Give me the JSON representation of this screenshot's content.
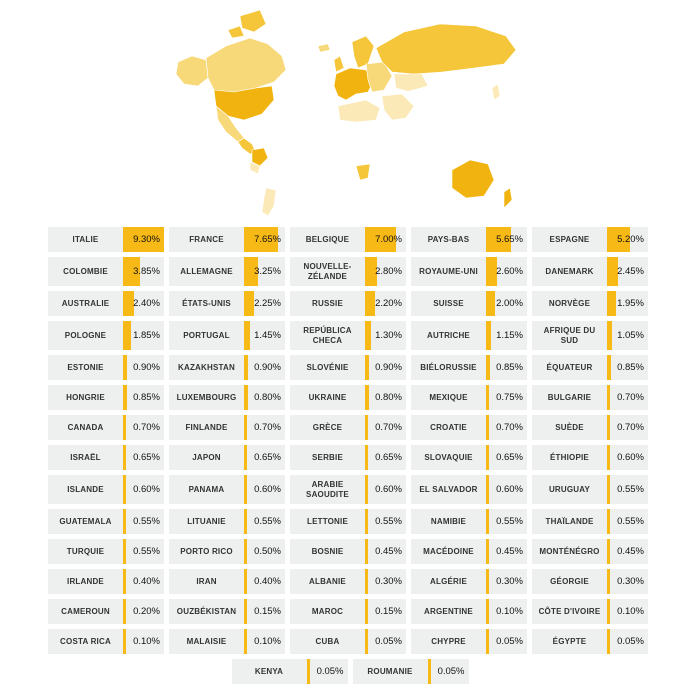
{
  "colors": {
    "bar": "#f7b916",
    "cell_bg": "#eef0f0",
    "map_none": "#ffffff",
    "map_border": "#d3d3d3",
    "map_scale": [
      "#fbe9b8",
      "#f8d97a",
      "#f5c63a",
      "#f0b30f"
    ]
  },
  "map": {
    "type": "choropleth-world",
    "legend": false
  },
  "chart_data": {
    "type": "table",
    "unit": "%",
    "rows": [
      [
        {
          "country": "ITALIE",
          "value": 9.3,
          "label": "9.30%"
        },
        {
          "country": "FRANCE",
          "value": 7.65,
          "label": "7.65%"
        },
        {
          "country": "BELGIQUE",
          "value": 7.0,
          "label": "7.00%"
        },
        {
          "country": "PAYS-BAS",
          "value": 5.65,
          "label": "5.65%"
        },
        {
          "country": "ESPAGNE",
          "value": 5.2,
          "label": "5.20%"
        }
      ],
      [
        {
          "country": "COLOMBIE",
          "value": 3.85,
          "label": "3.85%"
        },
        {
          "country": "ALLEMAGNE",
          "value": 3.25,
          "label": "3.25%"
        },
        {
          "country": "NOUVELLE-ZÉLANDE",
          "value": 2.8,
          "label": "2.80%"
        },
        {
          "country": "ROYAUME-UNI",
          "value": 2.6,
          "label": "2.60%"
        },
        {
          "country": "DANEMARK",
          "value": 2.45,
          "label": "2.45%"
        }
      ],
      [
        {
          "country": "AUSTRALIE",
          "value": 2.4,
          "label": "2.40%"
        },
        {
          "country": "ÉTATS-UNIS",
          "value": 2.25,
          "label": "2.25%"
        },
        {
          "country": "RUSSIE",
          "value": 2.2,
          "label": "2.20%"
        },
        {
          "country": "SUISSE",
          "value": 2.0,
          "label": "2.00%"
        },
        {
          "country": "NORVÈGE",
          "value": 1.95,
          "label": "1.95%"
        }
      ],
      [
        {
          "country": "POLOGNE",
          "value": 1.85,
          "label": "1.85%"
        },
        {
          "country": "PORTUGAL",
          "value": 1.45,
          "label": "1.45%"
        },
        {
          "country": "REPÚBLICA CHECA",
          "value": 1.3,
          "label": "1.30%"
        },
        {
          "country": "AUTRICHE",
          "value": 1.15,
          "label": "1.15%"
        },
        {
          "country": "AFRIQUE DU SUD",
          "value": 1.05,
          "label": "1.05%"
        }
      ],
      [
        {
          "country": "ESTONIE",
          "value": 0.9,
          "label": "0.90%"
        },
        {
          "country": "KAZAKHSTAN",
          "value": 0.9,
          "label": "0.90%"
        },
        {
          "country": "SLOVÉNIE",
          "value": 0.9,
          "label": "0.90%"
        },
        {
          "country": "BIÉLORUSSIE",
          "value": 0.85,
          "label": "0.85%"
        },
        {
          "country": "ÉQUATEUR",
          "value": 0.85,
          "label": "0.85%"
        }
      ],
      [
        {
          "country": "HONGRIE",
          "value": 0.85,
          "label": "0.85%"
        },
        {
          "country": "LUXEMBOURG",
          "value": 0.8,
          "label": "0.80%"
        },
        {
          "country": "UKRAINE",
          "value": 0.8,
          "label": "0.80%"
        },
        {
          "country": "MEXIQUE",
          "value": 0.75,
          "label": "0.75%"
        },
        {
          "country": "BULGARIE",
          "value": 0.7,
          "label": "0.70%"
        }
      ],
      [
        {
          "country": "CANADA",
          "value": 0.7,
          "label": "0.70%"
        },
        {
          "country": "FINLANDE",
          "value": 0.7,
          "label": "0.70%"
        },
        {
          "country": "GRÈCE",
          "value": 0.7,
          "label": "0.70%"
        },
        {
          "country": "CROATIE",
          "value": 0.7,
          "label": "0.70%"
        },
        {
          "country": "SUÈDE",
          "value": 0.7,
          "label": "0.70%"
        }
      ],
      [
        {
          "country": "ISRAËL",
          "value": 0.65,
          "label": "0.65%"
        },
        {
          "country": "JAPON",
          "value": 0.65,
          "label": "0.65%"
        },
        {
          "country": "SERBIE",
          "value": 0.65,
          "label": "0.65%"
        },
        {
          "country": "SLOVAQUIE",
          "value": 0.65,
          "label": "0.65%"
        },
        {
          "country": "ÉTHIOPIE",
          "value": 0.6,
          "label": "0.60%"
        }
      ],
      [
        {
          "country": "ISLANDE",
          "value": 0.6,
          "label": "0.60%"
        },
        {
          "country": "PANAMA",
          "value": 0.6,
          "label": "0.60%"
        },
        {
          "country": "ARABIE SAOUDITE",
          "value": 0.6,
          "label": "0.60%"
        },
        {
          "country": "EL SALVADOR",
          "value": 0.6,
          "label": "0.60%"
        },
        {
          "country": "URUGUAY",
          "value": 0.55,
          "label": "0.55%"
        }
      ],
      [
        {
          "country": "GUATEMALA",
          "value": 0.55,
          "label": "0.55%"
        },
        {
          "country": "LITUANIE",
          "value": 0.55,
          "label": "0.55%"
        },
        {
          "country": "LETTONIE",
          "value": 0.55,
          "label": "0.55%"
        },
        {
          "country": "NAMIBIE",
          "value": 0.55,
          "label": "0.55%"
        },
        {
          "country": "THAÏLANDE",
          "value": 0.55,
          "label": "0.55%"
        }
      ],
      [
        {
          "country": "TURQUIE",
          "value": 0.55,
          "label": "0.55%"
        },
        {
          "country": "PORTO RICO",
          "value": 0.5,
          "label": "0.50%"
        },
        {
          "country": "BOSNIE",
          "value": 0.45,
          "label": "0.45%"
        },
        {
          "country": "MACÉDOINE",
          "value": 0.45,
          "label": "0.45%"
        },
        {
          "country": "MONTÉNÉGRO",
          "value": 0.45,
          "label": "0.45%"
        }
      ],
      [
        {
          "country": "IRLANDE",
          "value": 0.4,
          "label": "0.40%"
        },
        {
          "country": "IRAN",
          "value": 0.4,
          "label": "0.40%"
        },
        {
          "country": "ALBANIE",
          "value": 0.3,
          "label": "0.30%"
        },
        {
          "country": "ALGÉRIE",
          "value": 0.3,
          "label": "0.30%"
        },
        {
          "country": "GÉORGIE",
          "value": 0.3,
          "label": "0.30%"
        }
      ],
      [
        {
          "country": "CAMEROUN",
          "value": 0.2,
          "label": "0.20%"
        },
        {
          "country": "OUZBÉKISTAN",
          "value": 0.15,
          "label": "0.15%"
        },
        {
          "country": "MAROC",
          "value": 0.15,
          "label": "0.15%"
        },
        {
          "country": "ARGENTINE",
          "value": 0.1,
          "label": "0.10%"
        },
        {
          "country": "CÔTE D'IVOIRE",
          "value": 0.1,
          "label": "0.10%"
        }
      ],
      [
        {
          "country": "COSTA RICA",
          "value": 0.1,
          "label": "0.10%"
        },
        {
          "country": "MALAISIE",
          "value": 0.1,
          "label": "0.10%"
        },
        {
          "country": "CUBA",
          "value": 0.05,
          "label": "0.05%"
        },
        {
          "country": "CHYPRE",
          "value": 0.05,
          "label": "0.05%"
        },
        {
          "country": "ÉGYPTE",
          "value": 0.05,
          "label": "0.05%"
        }
      ],
      [
        {
          "country": "KENYA",
          "value": 0.05,
          "label": "0.05%"
        },
        {
          "country": "ROUMANIE",
          "value": 0.05,
          "label": "0.05%"
        }
      ]
    ]
  }
}
